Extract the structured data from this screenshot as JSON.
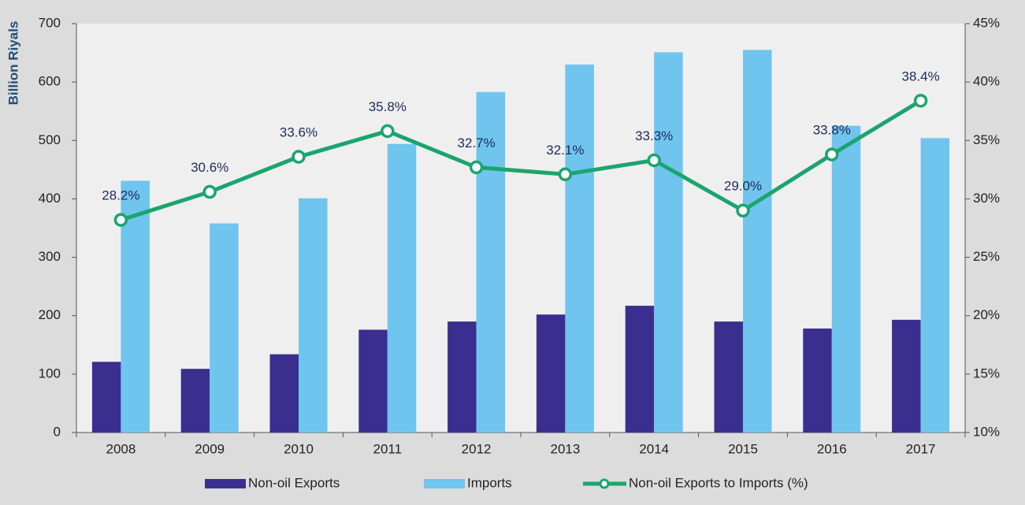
{
  "chart_data": {
    "type": "bar_line",
    "y_label": "Billion Riyals",
    "categories": [
      "2008",
      "2009",
      "2010",
      "2011",
      "2012",
      "2013",
      "2014",
      "2015",
      "2016",
      "2017"
    ],
    "series": [
      {
        "name": "Non-oil Exports",
        "color": "#3a2f8f",
        "type": "bar",
        "values": [
          121,
          109,
          134,
          176,
          190,
          202,
          217,
          190,
          178,
          193
        ]
      },
      {
        "name": "Imports",
        "color": "#6fc5ee",
        "type": "bar",
        "values": [
          431,
          358,
          401,
          494,
          583,
          630,
          651,
          655,
          525,
          504
        ]
      },
      {
        "name": "Non-oil Exports to Imports (%)",
        "color": "#1aa56e",
        "type": "line",
        "axis": "y2",
        "values": [
          28.2,
          30.6,
          33.6,
          35.8,
          32.7,
          32.1,
          33.3,
          29.0,
          33.8,
          38.4
        ],
        "value_labels": [
          "28.2%",
          "30.6%",
          "33.6%",
          "35.8%",
          "32.7%",
          "32.1%",
          "33.3%",
          "29.0%",
          "33.8%",
          "38.4%"
        ]
      }
    ],
    "ylim": [
      0,
      700
    ],
    "yticks": [
      0,
      100,
      200,
      300,
      400,
      500,
      600,
      700
    ],
    "y2lim": [
      10,
      45
    ],
    "y2ticks": [
      {
        "value": 10,
        "label": "10%"
      },
      {
        "value": 15,
        "label": "15%"
      },
      {
        "value": 20,
        "label": "20%"
      },
      {
        "value": 25,
        "label": "25%"
      },
      {
        "value": 30,
        "label": "30%"
      },
      {
        "value": 35,
        "label": "35%"
      },
      {
        "value": 40,
        "label": "40%"
      },
      {
        "value": 45,
        "label": "45%"
      }
    ],
    "legend": "bottom"
  }
}
